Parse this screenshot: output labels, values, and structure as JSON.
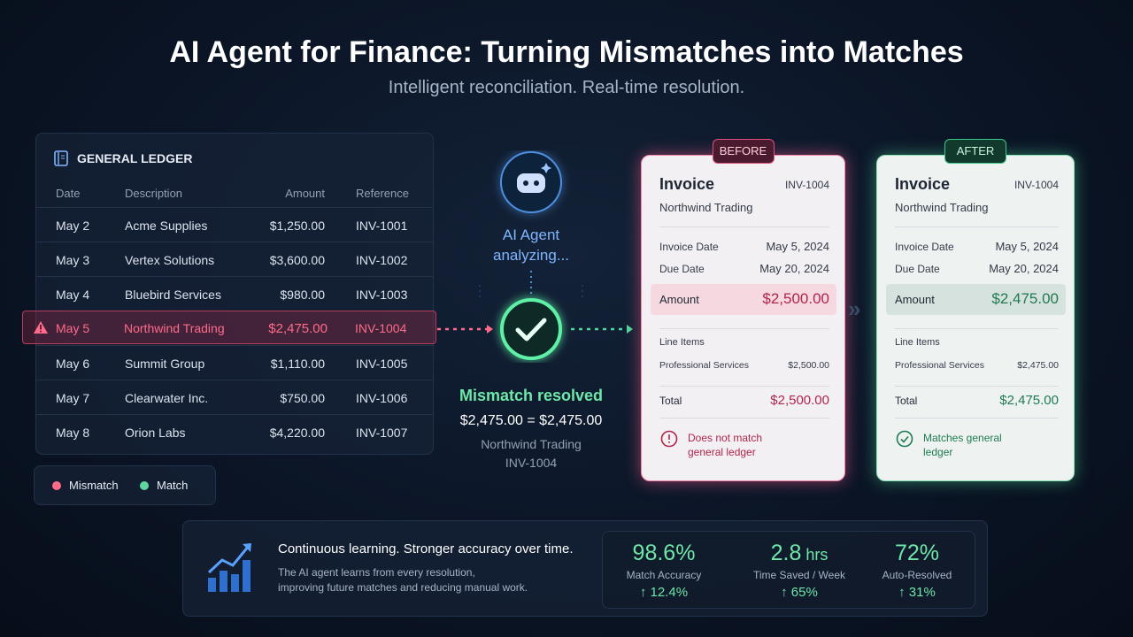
{
  "header": {
    "title": "AI Agent for Finance: Turning Mismatches into Matches",
    "subtitle": "Intelligent reconciliation. Real-time resolution."
  },
  "ledger": {
    "title": "GENERAL LEDGER",
    "columns": [
      "Date",
      "Description",
      "Amount",
      "Reference"
    ],
    "rows": [
      [
        "May 2",
        "Acme Supplies",
        "$1,250.00",
        "INV-1001"
      ],
      [
        "May 3",
        "Vertex Solutions",
        "$3,600.00",
        "INV-1002"
      ],
      [
        "May 4",
        "Bluebird Services",
        "$980.00",
        "INV-1003"
      ],
      [
        "May 5",
        "Northwind Trading",
        "$2,475.00",
        "INV-1004"
      ],
      [
        "May 6",
        "Summit Group",
        "$1,110.00",
        "INV-1005"
      ],
      [
        "May 7",
        "Clearwater Inc.",
        "$750.00",
        "INV-1006"
      ],
      [
        "May 8",
        "Orion Labs",
        "$4,220.00",
        "INV-1007"
      ]
    ]
  },
  "legend": [
    "Mismatch",
    "Match"
  ],
  "agent": {
    "label": "AI Agent analyzing...",
    "status": "Mismatch resolved",
    "equation": "$2,475.00 = $2,475.00",
    "vendor": "Northwind Trading",
    "reference": "INV-1004"
  },
  "before": {
    "badge": "BEFORE",
    "title": "Invoice",
    "number": "INV-1004",
    "vendor": "Northwind Trading",
    "fields": [
      [
        "Invoice Date",
        "May 5, 2024"
      ],
      [
        "Due Date",
        "May 20, 2024"
      ]
    ],
    "amount": [
      "Amount",
      "$2,500.00"
    ],
    "line_items": "Line Items",
    "line": [
      "Professional Services",
      "$2,500.00"
    ],
    "total": [
      "Total",
      "$2,500.00"
    ],
    "note": "Does not match general ledger"
  },
  "after": {
    "badge": "AFTER",
    "title": "Invoice",
    "number": "INV-1004",
    "vendor": "Northwind Trading",
    "fields": [
      [
        "Invoice Date",
        "May 5, 2024"
      ],
      [
        "Due Date",
        "May 20, 2024"
      ]
    ],
    "amount": [
      "Amount",
      "$2,475.00"
    ],
    "line_items": "Line Items",
    "line": [
      "Professional Services",
      "$2,475.00"
    ],
    "total": [
      "Total",
      "$2,475.00"
    ],
    "note": "Matches general ledger"
  },
  "footer": {
    "heading": "Continuous learning. Stronger accuracy over time.",
    "body": [
      "The AI agent learns from every resolution,",
      "improving future matches and reducing manual work."
    ],
    "metrics": [
      {
        "value": "98.6%",
        "unit": "",
        "label": "Match Accuracy",
        "change": "↑ 12.4%"
      },
      {
        "value": "2.8",
        "unit": "hrs",
        "label": "Time Saved / Week",
        "change": "↑ 65%"
      },
      {
        "value": "72%",
        "unit": "",
        "label": "Auto-Resolved",
        "change": "↑ 31%"
      }
    ]
  }
}
